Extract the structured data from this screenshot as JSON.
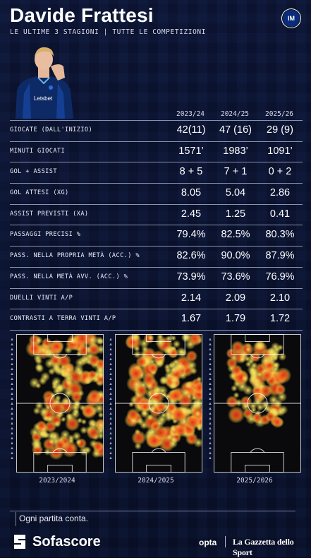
{
  "header": {
    "title": "Davide Frattesi",
    "subtitle": "LE ULTIME 3 STAGIONI | TUTTE LE COMPETIZIONI",
    "crest_label": "IM"
  },
  "seasons": [
    "2023/24",
    "2024/25",
    "2025/26"
  ],
  "stats": [
    {
      "label": "GIOCATE (DALL'INIZIO)",
      "values": [
        "42(11)",
        "47 (16)",
        "29 (9)"
      ]
    },
    {
      "label": "MINUTI GIOCATI",
      "values": [
        "1571’",
        "1983’",
        "1091’"
      ]
    },
    {
      "label": "GOL + ASSIST",
      "values": [
        "8 + 5",
        "7 + 1",
        "0 + 2"
      ]
    },
    {
      "label": "GOL ATTESI (XG)",
      "values": [
        "8.05",
        "5.04",
        "2.86"
      ]
    },
    {
      "label": "ASSIST PREVISTI (XA)",
      "values": [
        "2.45",
        "1.25",
        "0.41"
      ]
    },
    {
      "label": "PASSAGGI PRECISI %",
      "values": [
        "79.4%",
        "82.5%",
        "80.3%"
      ]
    },
    {
      "label": "PASS. NELLA PROPRIA METÀ (ACC.) %",
      "values": [
        "82.6%",
        "90.0%",
        "87.9%"
      ]
    },
    {
      "label": "PASS. NELLA METÀ AVV. (ACC.) %",
      "values": [
        "73.9%",
        "73.6%",
        "76.9%"
      ]
    },
    {
      "label": "DUELLI VINTI A/P",
      "values": [
        "2.14",
        "2.09",
        "2.10"
      ]
    },
    {
      "label": "CONTRASTI A TERRA VINTI A/P",
      "values": [
        "1.67",
        "1.79",
        "1.72"
      ]
    }
  ],
  "heatmaps": [
    {
      "label": "2023/2024"
    },
    {
      "label": "2024/2025"
    },
    {
      "label": "2025/2026"
    }
  ],
  "tagline": "Ogni partita conta.",
  "footer": {
    "brand": "Sofascore",
    "partner1": "opta",
    "partner2": "La Gazzetta dello Sport"
  },
  "colors": {
    "background": "#070d22",
    "heat_low": "#f4e25a",
    "heat_high": "#e8281a"
  }
}
